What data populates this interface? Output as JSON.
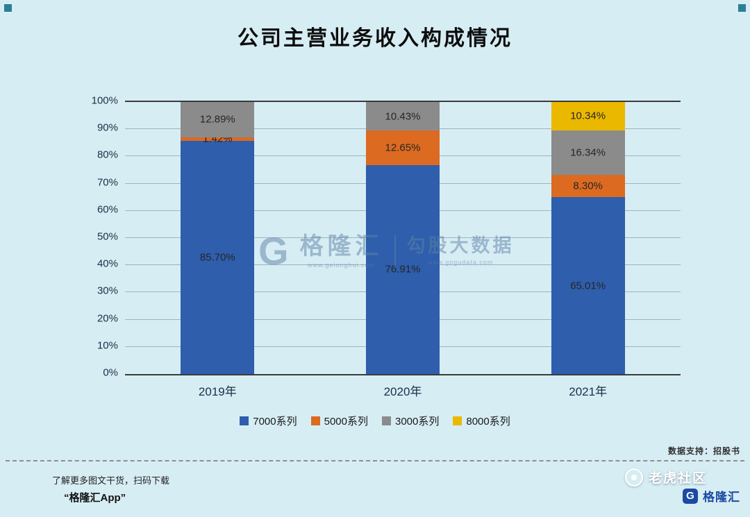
{
  "title": "公司主营业务收入构成情况",
  "watermark": {
    "logo_letter": "G",
    "brand": "格隆汇",
    "brand_url": "www.gelonghui.com",
    "tagline": "勾股大数据",
    "tagline_url": "www.gogudata.com"
  },
  "chart_data": {
    "type": "bar",
    "stacked": true,
    "title": "公司主营业务收入构成情况",
    "categories": [
      "2019年",
      "2020年",
      "2021年"
    ],
    "series": [
      {
        "name": "7000系列",
        "color": "#2E5EAC",
        "values": [
          85.7,
          76.91,
          65.01
        ]
      },
      {
        "name": "5000系列",
        "color": "#DC6A20",
        "values": [
          1.42,
          12.65,
          8.3
        ]
      },
      {
        "name": "3000系列",
        "color": "#8B8B8B",
        "values": [
          12.89,
          10.43,
          16.34
        ]
      },
      {
        "name": "8000系列",
        "color": "#EBB800",
        "values": [
          0,
          0,
          10.34
        ]
      }
    ],
    "ylim": [
      0,
      100
    ],
    "ytick_step": 10,
    "ytick_suffix": "%",
    "grid": true,
    "legend_position": "bottom",
    "label_format": "0.00%"
  },
  "footer": {
    "data_support": "数据支持：招股书",
    "promo_line1": "了解更多图文干货，扫码下载",
    "promo_app": "“格隆汇App”",
    "community": "老虎社区",
    "brand_logo_letter": "G",
    "brand": "格隆汇"
  }
}
